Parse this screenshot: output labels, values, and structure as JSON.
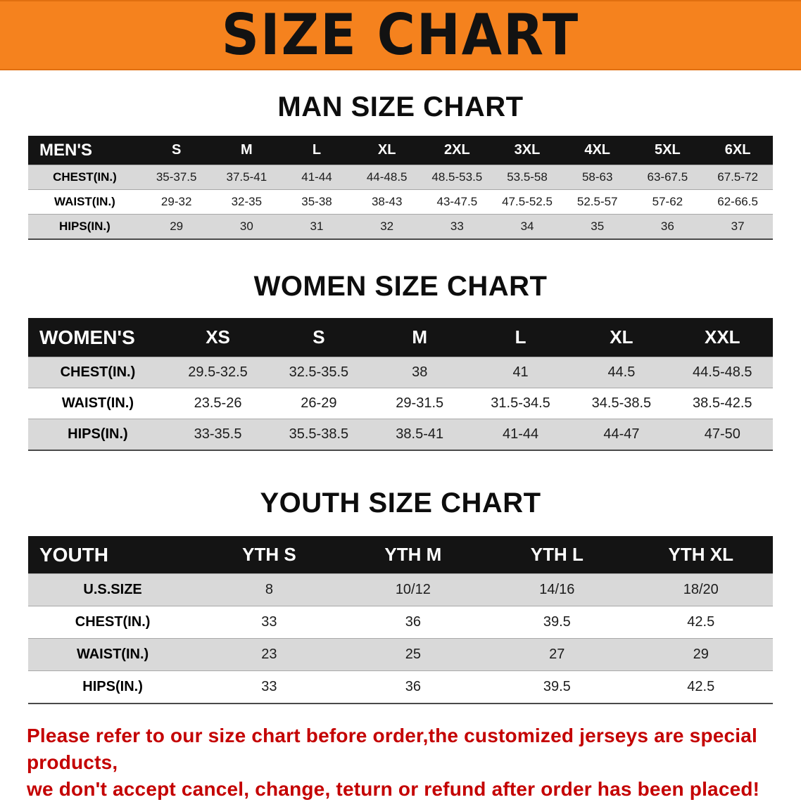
{
  "banner": {
    "title": "SIZE CHART"
  },
  "sections": [
    {
      "heading": "MAN SIZE CHART",
      "table": {
        "header": [
          "MEN'S",
          "S",
          "M",
          "L",
          "XL",
          "2XL",
          "3XL",
          "4XL",
          "5XL",
          "6XL"
        ],
        "rows": [
          [
            "CHEST(IN.)",
            "35-37.5",
            "37.5-41",
            "41-44",
            "44-48.5",
            "48.5-53.5",
            "53.5-58",
            "58-63",
            "63-67.5",
            "67.5-72"
          ],
          [
            "WAIST(IN.)",
            "29-32",
            "32-35",
            "35-38",
            "38-43",
            "43-47.5",
            "47.5-52.5",
            "52.5-57",
            "57-62",
            "62-66.5"
          ],
          [
            "HIPS(IN.)",
            "29",
            "30",
            "31",
            "32",
            "33",
            "34",
            "35",
            "36",
            "37"
          ]
        ]
      }
    },
    {
      "heading": "WOMEN SIZE CHART",
      "table": {
        "header": [
          "WOMEN'S",
          "XS",
          "S",
          "M",
          "L",
          "XL",
          "XXL"
        ],
        "rows": [
          [
            "CHEST(IN.)",
            "29.5-32.5",
            "32.5-35.5",
            "38",
            "41",
            "44.5",
            "44.5-48.5"
          ],
          [
            "WAIST(IN.)",
            "23.5-26",
            "26-29",
            "29-31.5",
            "31.5-34.5",
            "34.5-38.5",
            "38.5-42.5"
          ],
          [
            "HIPS(IN.)",
            "33-35.5",
            "35.5-38.5",
            "38.5-41",
            "41-44",
            "44-47",
            "47-50"
          ]
        ]
      }
    },
    {
      "heading": "YOUTH SIZE CHART",
      "table": {
        "header": [
          "YOUTH",
          "YTH S",
          "YTH M",
          "YTH L",
          "YTH XL"
        ],
        "rows": [
          [
            "U.S.SIZE",
            "8",
            "10/12",
            "14/16",
            "18/20"
          ],
          [
            "CHEST(IN.)",
            "33",
            "36",
            "39.5",
            "42.5"
          ],
          [
            "WAIST(IN.)",
            "23",
            "25",
            "27",
            "29"
          ],
          [
            "HIPS(IN.)",
            "33",
            "36",
            "39.5",
            "42.5"
          ]
        ]
      }
    }
  ],
  "footer": {
    "line1": "Please refer to our size chart before order,the customized jerseys are special products,",
    "line2": "we don't accept cancel, change, teturn or refund after order has been placed!"
  },
  "colors": {
    "banner_bg": "#F5821E",
    "header_bg": "#141414",
    "row_alt_bg": "#D9D9D9",
    "footer_text": "#C40000"
  }
}
